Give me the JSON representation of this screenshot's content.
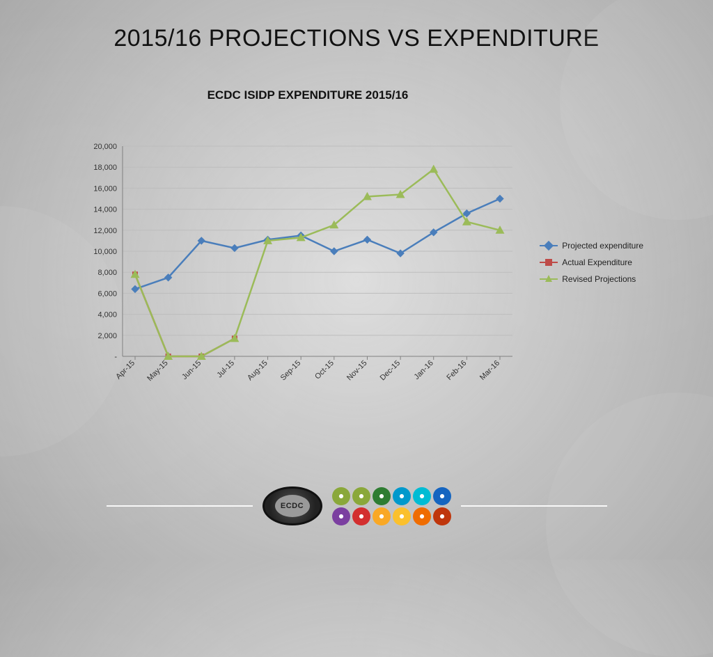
{
  "title": "2015/16 PROJECTIONS VS EXPENDITURE",
  "chart": {
    "type": "line",
    "title": "ECDC ISIDP EXPENDITURE  2015/16",
    "categories": [
      "Apr-15",
      "May-15",
      "Jun-15",
      "Jul-15",
      "Aug-15",
      "Sep-15",
      "Oct-15",
      "Nov-15",
      "Dec-15",
      "Jan-16",
      "Feb-16",
      "Mar-16"
    ],
    "ylim": [
      0,
      20000
    ],
    "ytick_step": 2000,
    "ytick_labels": [
      "-",
      "2,000",
      "4,000",
      "6,000",
      "8,000",
      "10,000",
      "12,000",
      "14,000",
      "16,000",
      "18,000",
      "20,000"
    ],
    "xlabel_rotation_deg": -45,
    "grid_color": "#bdbdbd",
    "axis_color": "#808080",
    "background": "transparent",
    "tick_fontsize": 11,
    "title_fontsize": 17,
    "series": [
      {
        "name": "Projected expenditure",
        "color": "#4a7ebb",
        "marker": "diamond",
        "marker_size": 8,
        "line_width": 2.5,
        "values": [
          6400,
          7500,
          11000,
          10300,
          11100,
          11500,
          10000,
          11100,
          9800,
          11800,
          13600,
          15000
        ]
      },
      {
        "name": "Actual Expenditure",
        "color": "#be4b48",
        "marker": "square",
        "marker_size": 7,
        "line_width": 2.5,
        "values": [
          7800,
          0,
          0,
          1700,
          null,
          null,
          null,
          null,
          null,
          null,
          null,
          null
        ]
      },
      {
        "name": "Revised Projections",
        "color": "#9bbb59",
        "marker": "triangle",
        "marker_size": 9,
        "line_width": 2.5,
        "values": [
          7800,
          0,
          0,
          1700,
          11000,
          11300,
          12500,
          15200,
          15400,
          17800,
          12800,
          12000
        ]
      }
    ]
  },
  "footer": {
    "badge_text": "ECDC",
    "icon_colors_row1": [
      "#8aa83a",
      "#8aa83a",
      "#2e7d32",
      "#0099cc",
      "#00bcd4",
      "#1565c0"
    ],
    "icon_colors_row2": [
      "#7b3fa0",
      "#d32f2f",
      "#f9a825",
      "#fbc02d",
      "#ef6c00",
      "#bf360c"
    ]
  }
}
